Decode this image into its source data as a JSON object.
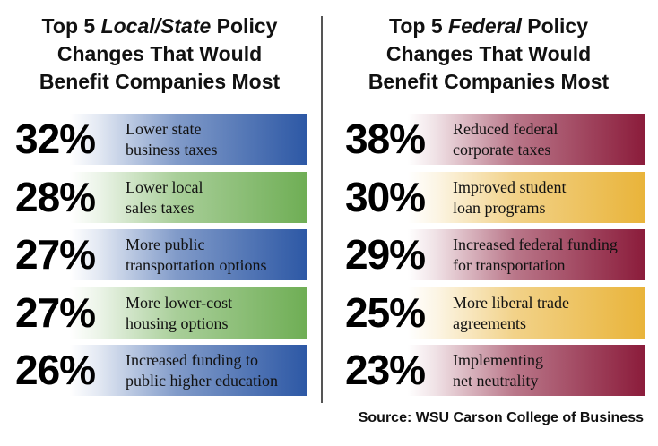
{
  "left_title": {
    "pre": "Top 5 ",
    "em": "Local/State",
    "post": " Policy",
    "line2": "Changes That Would",
    "line3": "Benefit Companies Most"
  },
  "right_title": {
    "pre": "Top 5 ",
    "em": "Federal",
    "post": " Policy",
    "line2": "Changes That Would",
    "line3": "Benefit Companies Most"
  },
  "colors": {
    "blue": "#2d58a5",
    "green": "#6fae55",
    "maroon": "#8b1c3b",
    "gold": "#e9b43a"
  },
  "chart_data": [
    {
      "type": "table",
      "title": "Top 5 Local/State Policy Changes That Would Benefit Companies Most",
      "categories": [
        "Lower state business taxes",
        "Lower local sales taxes",
        "More public transportation options",
        "More lower-cost housing options",
        "Increased funding to public higher education"
      ],
      "values": [
        32,
        28,
        27,
        27,
        26
      ],
      "labels": [
        [
          "Lower state",
          "business taxes"
        ],
        [
          "Lower local",
          "sales taxes"
        ],
        [
          "More public",
          "transportation options"
        ],
        [
          "More lower-cost",
          "housing options"
        ],
        [
          "Increased funding to",
          "public higher education"
        ]
      ],
      "display": [
        "32%",
        "28%",
        "27%",
        "27%",
        "26%"
      ],
      "bar_colors": [
        "#2d58a5",
        "#6fae55",
        "#2d58a5",
        "#6fae55",
        "#2d58a5"
      ]
    },
    {
      "type": "table",
      "title": "Top 5 Federal Policy Changes That Would Benefit Companies Most",
      "categories": [
        "Reduced federal corporate taxes",
        "Improved student loan programs",
        "Increased federal funding for transportation",
        "More liberal trade agreements",
        "Implementing net neutrality"
      ],
      "values": [
        38,
        30,
        29,
        25,
        23
      ],
      "labels": [
        [
          "Reduced federal",
          "corporate taxes"
        ],
        [
          "Improved student",
          "loan programs"
        ],
        [
          "Increased federal funding",
          "for transportation"
        ],
        [
          "More liberal trade",
          "agreements"
        ],
        [
          "Implementing",
          "net neutrality"
        ]
      ],
      "display": [
        "38%",
        "30%",
        "29%",
        "25%",
        "23%"
      ],
      "bar_colors": [
        "#8b1c3b",
        "#e9b43a",
        "#8b1c3b",
        "#e9b43a",
        "#8b1c3b"
      ]
    }
  ],
  "source": "Source: WSU Carson College of Business"
}
